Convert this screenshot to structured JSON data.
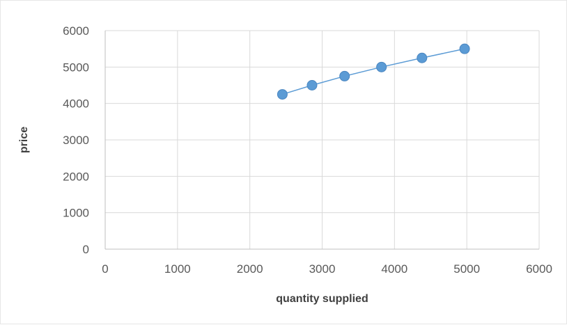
{
  "chart_data": {
    "type": "scatter",
    "title": "",
    "xlabel": "quantity supplied",
    "ylabel": "price",
    "xlim": [
      0,
      6000
    ],
    "ylim": [
      0,
      6000
    ],
    "x_ticks": [
      0,
      1000,
      2000,
      3000,
      4000,
      5000,
      6000
    ],
    "y_ticks": [
      0,
      1000,
      2000,
      3000,
      4000,
      5000,
      6000
    ],
    "grid": true,
    "legend": "none",
    "series": [
      {
        "color": "#5b9bd5",
        "marker": "circle",
        "line": "straight",
        "points": [
          {
            "x": 2450,
            "y": 4250
          },
          {
            "x": 2860,
            "y": 4500
          },
          {
            "x": 3310,
            "y": 4750
          },
          {
            "x": 3820,
            "y": 5000
          },
          {
            "x": 4380,
            "y": 5250
          },
          {
            "x": 4970,
            "y": 5500
          }
        ]
      }
    ]
  }
}
